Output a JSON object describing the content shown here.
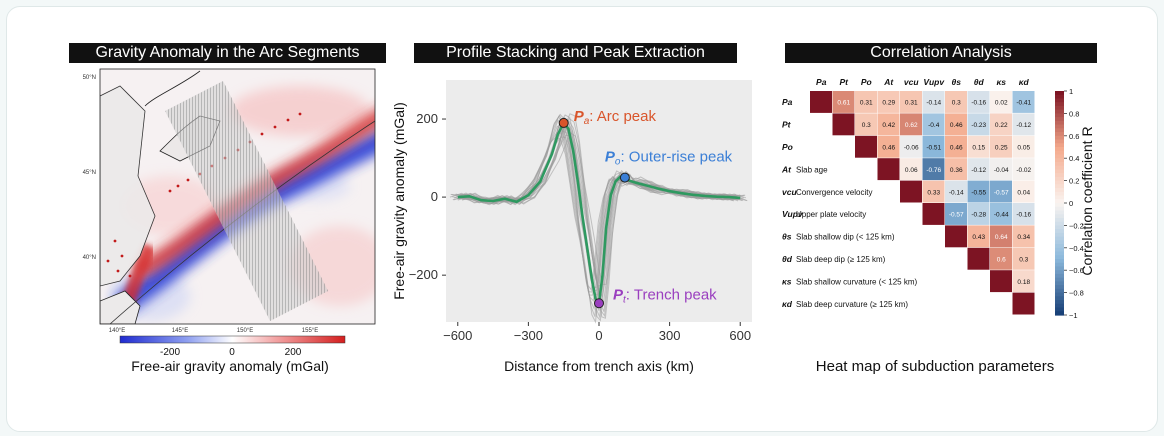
{
  "panels": {
    "map": {
      "title": "Gravity Anomaly in the Arc Segments",
      "lat_ticks": [
        "50°N",
        "45°N",
        "40°N"
      ],
      "lon_ticks": [
        "140°E",
        "145°E",
        "150°E",
        "155°E"
      ],
      "colorbar_ticks": [
        "-200",
        "0",
        "200"
      ],
      "colorbar_label": "Free-air gravity anomaly (mGal)",
      "colors": {
        "negative": "#2c3fd6",
        "positive": "#d42a2a"
      }
    },
    "profile": {
      "title": "Profile Stacking and Peak Extraction",
      "ylabel": "Free-air gravity anomaly (mGal)",
      "xlabel": "Distance from trench axis (km)",
      "peaks": {
        "arc": {
          "sym": "P",
          "sub": "a",
          "label": ": Arc peak",
          "color": "#d9552b"
        },
        "outer": {
          "sym": "P",
          "sub": "o",
          "label": ": Outer-rise peak",
          "color": "#3b7fd6"
        },
        "trench": {
          "sym": "P",
          "sub": "t",
          "label": ": Trench peak",
          "color": "#9a3fbf"
        }
      }
    },
    "heatmap": {
      "title": "Correlation Analysis",
      "caption": "Heat map of subduction parameters",
      "colorbar_label": "Correlation coefficient R",
      "colorbar_ticks": [
        "1",
        "0.8",
        "0.6",
        "0.4",
        "0.2",
        "0",
        "-0.2",
        "-0.4",
        "-0.6",
        "-0.8",
        "-1"
      ],
      "col_headers": [
        "Pa",
        "Pt",
        "Po",
        "At",
        "vcu",
        "Vupv",
        "θs",
        "θd",
        "κs",
        "κd"
      ],
      "row_syms": [
        "Pa",
        "Pt",
        "Po",
        "At",
        "vcu",
        "Vupv",
        "θs",
        "θd",
        "κs",
        "κd"
      ],
      "row_names": [
        "",
        "",
        "",
        "Slab age",
        "Convergence velocity",
        "Upper plate velocity",
        "Slab shallow dip (< 125 km)",
        "Slab deep dip (≥ 125 km)",
        "Slab shallow curvature (< 125 km)",
        "Slab deep curvature (≥ 125 km)"
      ]
    }
  },
  "chart_data": [
    {
      "type": "line",
      "title": "Profile Stacking and Peak Extraction",
      "xlabel": "Distance from trench axis (km)",
      "ylabel": "Free-air gravity anomaly (mGal)",
      "xlim": [
        -650,
        650
      ],
      "ylim": [
        -320,
        300
      ],
      "xticks": [
        -600,
        -300,
        0,
        300,
        600
      ],
      "yticks": [
        -200,
        0,
        200
      ],
      "grid": false,
      "series": [
        {
          "x": [
            -600,
            -550,
            -500,
            -450,
            -400,
            -350,
            -300,
            -250,
            -200,
            -175,
            -150,
            -130,
            -110,
            -90,
            -70,
            -50,
            -30,
            -15,
            0,
            15,
            30,
            50,
            70,
            90,
            110,
            130,
            150,
            200,
            250,
            300,
            350,
            400,
            450,
            500,
            550,
            600
          ],
          "y": [
            0,
            2,
            -8,
            -10,
            -4,
            -12,
            5,
            40,
            110,
            160,
            190,
            175,
            120,
            40,
            -50,
            -130,
            -210,
            -260,
            -272,
            -200,
            -80,
            5,
            40,
            52,
            50,
            42,
            38,
            30,
            22,
            15,
            10,
            6,
            3,
            1,
            0,
            -2
          ]
        }
      ],
      "peaks": [
        {
          "name": "Arc peak",
          "x": -150,
          "y": 190
        },
        {
          "name": "Outer-rise peak",
          "x": 110,
          "y": 50
        },
        {
          "name": "Trench peak",
          "x": 0,
          "y": -272
        }
      ]
    },
    {
      "type": "heatmap",
      "title": "Correlation Analysis",
      "labels": [
        "Pa",
        "Pt",
        "Po",
        "At",
        "vcu",
        "Vupv",
        "θs",
        "θd",
        "κs",
        "κd"
      ],
      "colorbar_range": [
        -1,
        1
      ],
      "values": [
        [
          1,
          0.61,
          0.31,
          0.29,
          0.31,
          -0.14,
          0.3,
          -0.16,
          0.02,
          -0.41
        ],
        [
          null,
          1,
          0.3,
          0.42,
          0.62,
          -0.4,
          0.46,
          -0.23,
          0.22,
          -0.12
        ],
        [
          null,
          null,
          1,
          0.46,
          -0.06,
          -0.51,
          0.46,
          0.15,
          0.25,
          0.05
        ],
        [
          null,
          null,
          null,
          1,
          0.06,
          -0.76,
          0.36,
          -0.12,
          -0.04,
          -0.02
        ],
        [
          null,
          null,
          null,
          null,
          1,
          0.33,
          -0.14,
          -0.55,
          -0.57,
          0.04
        ],
        [
          null,
          null,
          null,
          null,
          null,
          1,
          -0.57,
          -0.28,
          -0.44,
          -0.16
        ],
        [
          null,
          null,
          null,
          null,
          null,
          null,
          1,
          0.43,
          0.64,
          0.34
        ],
        [
          null,
          null,
          null,
          null,
          null,
          null,
          null,
          1,
          0.6,
          0.3
        ],
        [
          null,
          null,
          null,
          null,
          null,
          null,
          null,
          null,
          1,
          0.18
        ],
        [
          null,
          null,
          null,
          null,
          null,
          null,
          null,
          null,
          null,
          1
        ]
      ]
    }
  ]
}
